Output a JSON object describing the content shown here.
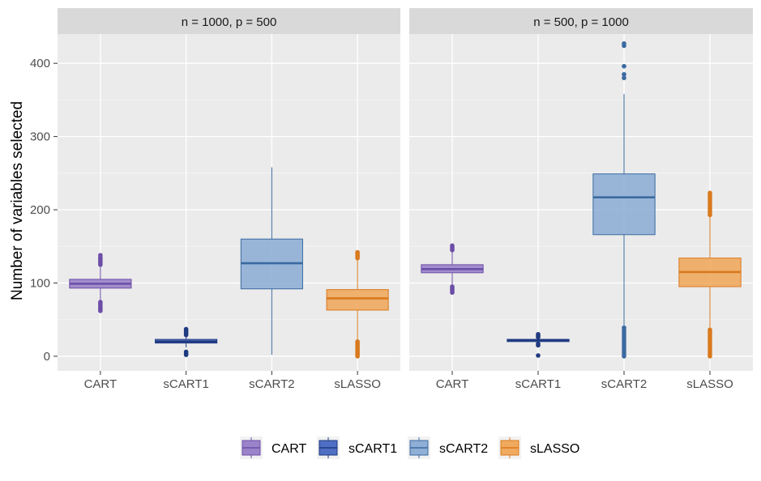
{
  "chart_data": {
    "type": "boxplot",
    "ylabel": "Number of variables selected",
    "ylim": [
      -20,
      440
    ],
    "yticks": [
      0,
      100,
      200,
      300,
      400
    ],
    "categories": [
      "CART",
      "sCART1",
      "sCART2",
      "sLASSO"
    ],
    "legend": {
      "position": "bottom",
      "items": [
        {
          "name": "CART",
          "fill": "#9b83c9",
          "stroke": "#6c4ea8"
        },
        {
          "name": "sCART1",
          "fill": "#4f6fc4",
          "stroke": "#1f3a80"
        },
        {
          "name": "sCART2",
          "fill": "#8fafd6",
          "stroke": "#3b6aa0"
        },
        {
          "name": "sLASSO",
          "fill": "#f0aa5f",
          "stroke": "#d9791e"
        }
      ]
    },
    "panels": [
      {
        "title": "n = 1000, p = 500",
        "boxes": [
          {
            "category": "CART",
            "min": 75,
            "q1": 93,
            "median": 99,
            "q3": 105,
            "max": 122,
            "outliers": [
              62,
              64,
              66,
              68,
              70,
              72,
              74,
              125,
              127,
              129,
              131,
              133,
              135,
              138
            ]
          },
          {
            "category": "sCART1",
            "min": 12,
            "q1": 18,
            "median": 20,
            "q3": 23,
            "max": 28,
            "outliers": [
              2,
              4,
              6,
              29,
              31,
              33,
              35,
              37
            ]
          },
          {
            "category": "sCART2",
            "min": 2,
            "q1": 92,
            "median": 127,
            "q3": 160,
            "max": 258,
            "outliers": []
          },
          {
            "category": "sLASSO",
            "min": 22,
            "q1": 63,
            "median": 79,
            "q3": 91,
            "max": 132,
            "outliers": [
              0,
              2,
              4,
              6,
              8,
              10,
              12,
              14,
              16,
              18,
              20,
              134,
              136,
              138,
              140,
              142
            ]
          }
        ]
      },
      {
        "title": "n = 500, p = 1000",
        "boxes": [
          {
            "category": "CART",
            "min": 96,
            "q1": 114,
            "median": 119,
            "q3": 125,
            "max": 143,
            "outliers": [
              87,
              89,
              91,
              93,
              95,
              145,
              147,
              149,
              151
            ]
          },
          {
            "category": "sCART1",
            "min": 20,
            "q1": 20,
            "median": 22,
            "q3": 23,
            "max": 24,
            "outliers": [
              1,
              15,
              17,
              26,
              28,
              30
            ]
          },
          {
            "category": "sCART2",
            "min": 42,
            "q1": 166,
            "median": 217,
            "q3": 249,
            "max": 358,
            "outliers": [
              0,
              3,
              6,
              9,
              12,
              15,
              18,
              21,
              24,
              27,
              30,
              33,
              36,
              39,
              380,
              385,
              396,
              424,
              427
            ]
          },
          {
            "category": "sLASSO",
            "min": 38,
            "q1": 95,
            "median": 115,
            "q3": 134,
            "max": 190,
            "outliers": [
              0,
              3,
              6,
              9,
              12,
              15,
              18,
              21,
              24,
              27,
              30,
              33,
              36,
              193,
              196,
              199,
              202,
              205,
              208,
              211,
              214,
              217,
              220,
              223
            ]
          }
        ]
      }
    ]
  }
}
